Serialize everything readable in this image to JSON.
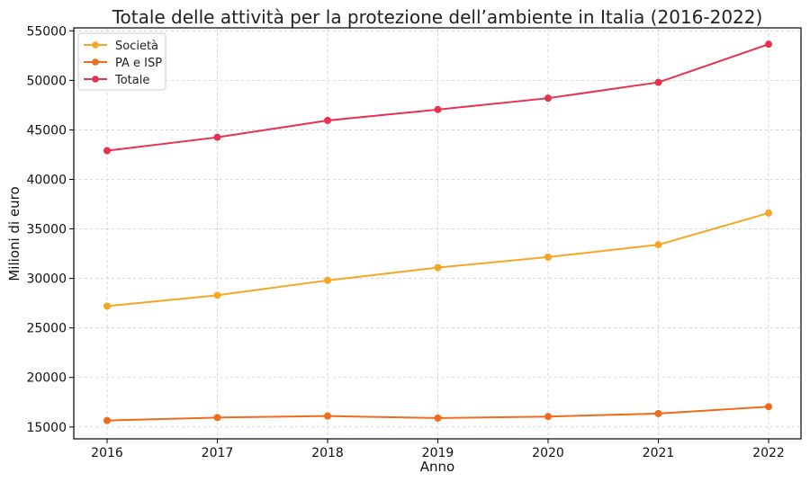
{
  "chart_data": {
    "type": "line",
    "title": "Totale delle attività per la protezione dell’ambiente in Italia (2016-2022)",
    "xlabel": "Anno",
    "ylabel": "Milioni di euro",
    "categories": [
      "2016",
      "2017",
      "2018",
      "2019",
      "2020",
      "2021",
      "2022"
    ],
    "ylim": [
      13800,
      55300
    ],
    "yticks": [
      15000,
      20000,
      25000,
      30000,
      35000,
      40000,
      45000,
      50000,
      55000
    ],
    "grid": true,
    "legend_position": "top-left",
    "series": [
      {
        "name": "Società",
        "color": "#f5a623",
        "values": [
          27200,
          28300,
          29800,
          31100,
          32150,
          33400,
          36600
        ]
      },
      {
        "name": "PA e ISP",
        "color": "#ef6c1d",
        "values": [
          15650,
          15950,
          16100,
          15900,
          16050,
          16350,
          17050
        ]
      },
      {
        "name": "Totale",
        "color": "#e8304f",
        "values": [
          42900,
          44250,
          45950,
          47050,
          48200,
          49800,
          53650
        ]
      }
    ]
  }
}
